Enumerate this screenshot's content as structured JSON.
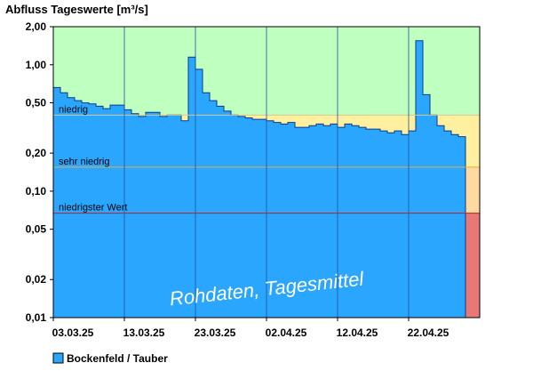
{
  "chart_data": {
    "type": "area",
    "title": "Abfluss Tageswerte [m³/s]",
    "y_scale": "log",
    "ylim": [
      0.01,
      2.0
    ],
    "y_ticks": [
      0.01,
      0.02,
      0.05,
      0.1,
      0.2,
      0.5,
      1.0,
      2.0
    ],
    "y_tick_labels": [
      "0,01",
      "0,02",
      "0,05",
      "0,10",
      "0,20",
      "0,50",
      "1,00",
      "2,00"
    ],
    "x_start": "2025-03-03",
    "x_end": "2025-04-30",
    "x_ticks": [
      "2025-03-03",
      "2025-03-13",
      "2025-03-23",
      "2025-04-02",
      "2025-04-12",
      "2025-04-22"
    ],
    "x_tick_labels": [
      "03.03.25",
      "13.03.25",
      "23.03.25",
      "02.04.25",
      "12.04.25",
      "22.04.25"
    ],
    "grid": true,
    "legend_position": "bottom-left",
    "thresholds": [
      {
        "label": "niedrig",
        "value": 0.4
      },
      {
        "label": "sehr niedrig",
        "value": 0.155
      },
      {
        "label": "niedrigster Wert",
        "value": 0.067
      }
    ],
    "bands": [
      {
        "from": 0.4,
        "to": 2.0,
        "color": "#bfffbf"
      },
      {
        "from": 0.155,
        "to": 0.4,
        "color": "#fff0a0"
      },
      {
        "from": 0.067,
        "to": 0.155,
        "color": "#ffd9a0"
      },
      {
        "from": 0.01,
        "to": 0.067,
        "color": "#e87878"
      }
    ],
    "series": [
      {
        "name": "Bockenfeld / Tauber",
        "color": "#2aa6ff",
        "x": [
          "2025-03-03",
          "2025-03-04",
          "2025-03-05",
          "2025-03-06",
          "2025-03-07",
          "2025-03-08",
          "2025-03-09",
          "2025-03-10",
          "2025-03-11",
          "2025-03-12",
          "2025-03-13",
          "2025-03-14",
          "2025-03-15",
          "2025-03-16",
          "2025-03-17",
          "2025-03-18",
          "2025-03-19",
          "2025-03-20",
          "2025-03-21",
          "2025-03-22",
          "2025-03-23",
          "2025-03-24",
          "2025-03-25",
          "2025-03-26",
          "2025-03-27",
          "2025-03-28",
          "2025-03-29",
          "2025-03-30",
          "2025-03-31",
          "2025-04-01",
          "2025-04-02",
          "2025-04-03",
          "2025-04-04",
          "2025-04-05",
          "2025-04-06",
          "2025-04-07",
          "2025-04-08",
          "2025-04-09",
          "2025-04-10",
          "2025-04-11",
          "2025-04-12",
          "2025-04-13",
          "2025-04-14",
          "2025-04-15",
          "2025-04-16",
          "2025-04-17",
          "2025-04-18",
          "2025-04-19",
          "2025-04-20",
          "2025-04-21",
          "2025-04-22",
          "2025-04-23",
          "2025-04-24",
          "2025-04-25",
          "2025-04-26",
          "2025-04-27",
          "2025-04-28",
          "2025-04-29"
        ],
        "values": [
          0.66,
          0.6,
          0.55,
          0.52,
          0.5,
          0.49,
          0.47,
          0.45,
          0.48,
          0.48,
          0.44,
          0.41,
          0.39,
          0.42,
          0.42,
          0.39,
          0.4,
          0.4,
          0.36,
          1.15,
          0.92,
          0.6,
          0.52,
          0.47,
          0.43,
          0.4,
          0.39,
          0.38,
          0.37,
          0.37,
          0.36,
          0.35,
          0.34,
          0.35,
          0.32,
          0.32,
          0.33,
          0.34,
          0.33,
          0.34,
          0.32,
          0.34,
          0.33,
          0.32,
          0.31,
          0.31,
          0.3,
          0.29,
          0.3,
          0.28,
          0.3,
          1.55,
          0.58,
          0.4,
          0.33,
          0.3,
          0.28,
          0.27
        ]
      }
    ],
    "annotations": [
      "Rohdaten, Tagesmittel"
    ]
  }
}
